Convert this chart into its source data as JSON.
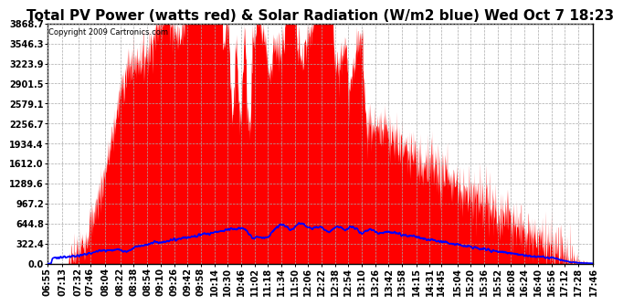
{
  "title": "Total PV Power (watts red) & Solar Radiation (W/m2 blue) Wed Oct 7 18:23",
  "copyright_text": "Copyright 2009 Cartronics.com",
  "y_max": 3868.7,
  "y_ticks": [
    0.0,
    322.4,
    644.8,
    967.2,
    1289.6,
    1612.0,
    1934.4,
    2256.7,
    2579.1,
    2901.5,
    3223.9,
    3546.3,
    3868.7
  ],
  "background_color": "#ffffff",
  "plot_bg_color": "#ffffff",
  "grid_color": "#aaaaaa",
  "fill_color": "#ff0000",
  "line_color": "#0000ff",
  "title_fontsize": 11,
  "tick_fontsize": 7,
  "tick_labels": [
    "06:55",
    "07:13",
    "07:32",
    "07:46",
    "08:04",
    "08:22",
    "08:38",
    "08:54",
    "09:10",
    "09:26",
    "09:42",
    "09:58",
    "10:14",
    "10:30",
    "10:46",
    "11:02",
    "11:18",
    "11:34",
    "11:50",
    "12:06",
    "12:22",
    "12:38",
    "12:54",
    "13:10",
    "13:26",
    "13:42",
    "13:58",
    "14:15",
    "14:31",
    "14:45",
    "15:04",
    "15:20",
    "15:36",
    "15:52",
    "16:08",
    "16:24",
    "16:40",
    "16:56",
    "17:12",
    "17:28",
    "17:46"
  ]
}
